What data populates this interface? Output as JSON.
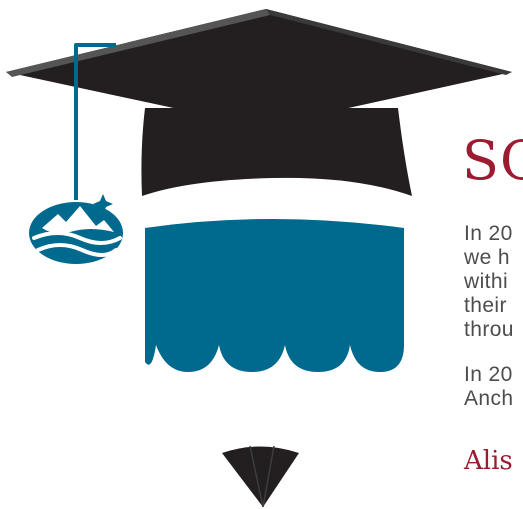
{
  "colors": {
    "cap": "#231f20",
    "cap_top": "#2b2b2b",
    "cap_brim": "#555555",
    "tassel": "#006a8e",
    "gown": "#006a8e",
    "heading": "#9b1b30",
    "body_text": "#4d4d4f",
    "signature": "#9b1b30"
  },
  "icons": {
    "logo": "mountain-wave-logo-icon",
    "cap": "graduation-cap-icon",
    "collar": "collar-triangle-icon"
  },
  "article": {
    "heading": "SC",
    "paragraph_1": [
      "In 20",
      "we h",
      "withi",
      "their",
      "throu"
    ],
    "paragraph_2": [
      "In 20",
      "Anch"
    ],
    "signature": "Alis"
  }
}
